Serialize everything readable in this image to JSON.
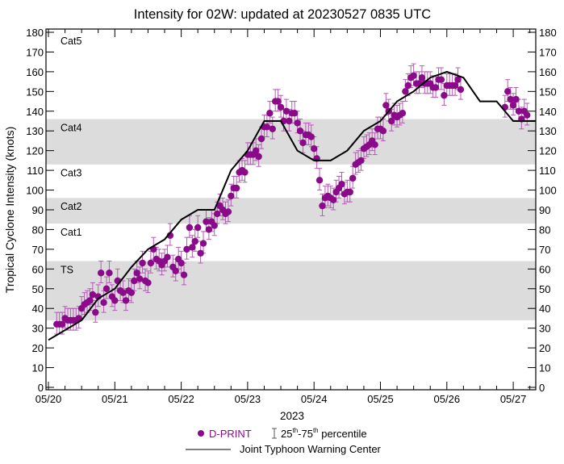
{
  "chart_data": {
    "type": "scatter",
    "title": "Intensity for 02W: updated at 20230527 0835 UTC",
    "ylabel": "Tropical Cyclone Intensity (knots)",
    "xlabel": "2023",
    "xlim": [
      "2023-05-19T23:00",
      "2023-05-27T08:00"
    ],
    "ylim": [
      0,
      180
    ],
    "y_ticks": [
      0,
      10,
      20,
      30,
      40,
      50,
      60,
      70,
      80,
      90,
      100,
      110,
      120,
      130,
      140,
      150,
      160,
      170,
      180
    ],
    "x_tick_labels": [
      "05/20",
      "05/21",
      "05/22",
      "05/23",
      "05/24",
      "05/25",
      "05/26",
      "05/27"
    ],
    "x_minor_tick_hours": 6,
    "grid": false,
    "legend_placement": "bottom",
    "colors": {
      "dprint": "#8a0a8a",
      "errorbar": "#b55ab5",
      "jtwc": "#000000",
      "band": "#dcdcdc"
    },
    "categories": [
      {
        "label": "TS",
        "range": [
          34,
          64
        ],
        "shaded": true
      },
      {
        "label": "Cat1",
        "range": [
          64,
          83
        ],
        "shaded": false
      },
      {
        "label": "Cat2",
        "range": [
          83,
          96
        ],
        "shaded": true
      },
      {
        "label": "Cat3",
        "range": [
          96,
          113
        ],
        "shaded": false
      },
      {
        "label": "Cat4",
        "range": [
          113,
          136
        ],
        "shaded": true
      },
      {
        "label": "Cat5",
        "range": [
          136,
          180
        ],
        "shaded": false
      }
    ],
    "series": [
      {
        "name": "D-PRINT",
        "marker": "circle",
        "percentile_offsets_knots": {
          "p25": -5,
          "p75": 6
        },
        "segments": [
          {
            "start": "2023-05-20T03:00",
            "step_hours": 1,
            "values": [
              32,
              32,
              32,
              35,
              34,
              34,
              34,
              34,
              35,
              40,
              42,
              43,
              44,
              47,
              38,
              46,
              58,
              43,
              50,
              58,
              46,
              44,
              54,
              49,
              48,
              44,
              49,
              48,
              54,
              58,
              55,
              63,
              54,
              53,
              63,
              70,
              65,
              64,
              62,
              64,
              66,
              77,
              61,
              59,
              65,
              63,
              57,
              70,
              81,
              71,
              74,
              81,
              68,
              73,
              84,
              80,
              84,
              82,
              88,
              92,
              90,
              88,
              89,
              97,
              101,
              101,
              109,
              110,
              109,
              118,
              118,
              118,
              120,
              117,
              126,
              132,
              132,
              139,
              131,
              145,
              145,
              142,
              135,
              140,
              135,
              139,
              139,
              134,
              130,
              124,
              128,
              128,
              127,
              121,
              116,
              105,
              92,
              96,
              97,
              96,
              95,
              99,
              101,
              103,
              98,
              99,
              99,
              106,
              113,
              114,
              115,
              121,
              122,
              123,
              125,
              123,
              131,
              131,
              130,
              143,
              140,
              135,
              138,
              137,
              138,
              139,
              150,
              153,
              157,
              158,
              154,
              154,
              157,
              154,
              154,
              154,
              152,
              152,
              156,
              156,
              148,
              153,
              153,
              153,
              153,
              156,
              151
            ]
          },
          {
            "start": "2023-05-26T21:00",
            "step_hours": 1,
            "values": [
              142,
              150,
              146,
              143,
              146,
              140,
              136,
              140,
              138
            ]
          }
        ]
      },
      {
        "name": "Joint Typhoon Warning Center",
        "marker": "line",
        "start": "2023-05-20T00:00",
        "step_hours": 6,
        "values": [
          24,
          29,
          34,
          45,
          50,
          61,
          70,
          75,
          85,
          90,
          90,
          110,
          120,
          135,
          135,
          120,
          115,
          115,
          120,
          130,
          135,
          145,
          150,
          157,
          160,
          157,
          145,
          145,
          135,
          135,
          135
        ]
      }
    ]
  },
  "legend": {
    "dprint": "D-PRINT",
    "percentile_25": "25",
    "percentile_sup": "th",
    "percentile_dash": "-75",
    "percentile_sup2": "th",
    "percentile_tail": " percentile",
    "jtwc": "Joint Typhoon Warning Center"
  }
}
